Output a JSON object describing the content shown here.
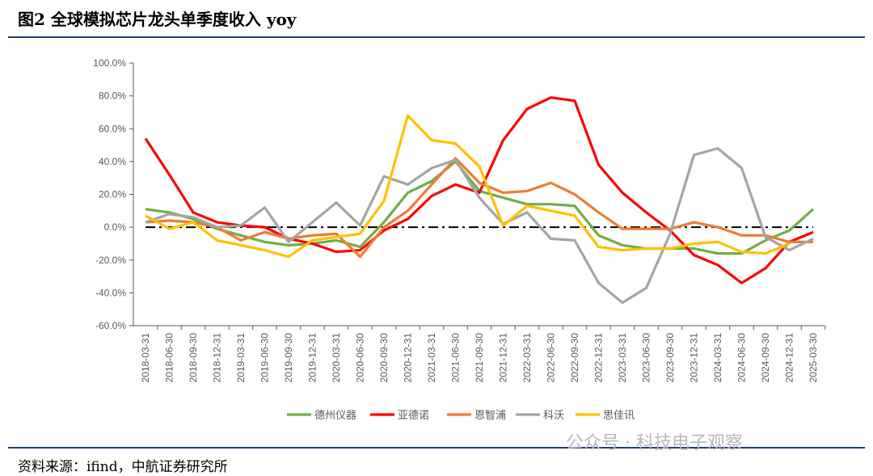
{
  "header": {
    "title": "图2  全球模拟芯片龙头单季度收入 yoy"
  },
  "footer": {
    "source": "资料来源：ifind，中航证券研究所",
    "watermark": "公众号 · 科技电子观察"
  },
  "chart_data": {
    "type": "line",
    "title": "",
    "xlabel": "",
    "ylabel": "",
    "ylim": [
      -60,
      100
    ],
    "yticks": [
      "100.0%",
      "80.0%",
      "60.0%",
      "40.0%",
      "20.0%",
      "0.0%",
      "-20.0%",
      "-40.0%",
      "-60.0%"
    ],
    "ytick_values": [
      100,
      80,
      60,
      40,
      20,
      0,
      -20,
      -40,
      -60
    ],
    "grid": false,
    "legend": "bottom",
    "reference_line": {
      "y": 0,
      "style": "dash-dot",
      "color": "#000000"
    },
    "categories": [
      "2018-03-31",
      "2018-06-30",
      "2018-09-30",
      "2018-12-31",
      "2019-03-31",
      "2019-06-30",
      "2019-09-30",
      "2019-12-31",
      "2020-03-31",
      "2020-06-30",
      "2020-09-30",
      "2020-12-31",
      "2021-03-31",
      "2021-06-30",
      "2021-09-30",
      "2021-12-31",
      "2022-03-31",
      "2022-06-30",
      "2022-09-30",
      "2022-12-31",
      "2023-03-31",
      "2023-06-30",
      "2023-09-30",
      "2023-12-31",
      "2024-03-31",
      "2024-06-30",
      "2024-09-30",
      "2024-12-31",
      "2025-03-30"
    ],
    "series": [
      {
        "name": "德州仪器",
        "color": "#70ad47",
        "values": [
          11,
          9,
          5,
          -1,
          -5,
          -9,
          -11,
          -10,
          -8,
          -12,
          3,
          21,
          28,
          40,
          22,
          18,
          14,
          14,
          13,
          -5,
          -11,
          -13,
          -13,
          -13,
          -16,
          -16,
          -8,
          -2,
          11
        ]
      },
      {
        "name": "亚德诺",
        "color": "#ff0000",
        "values": [
          54,
          32,
          9,
          3,
          1,
          0,
          -7,
          -10,
          -15,
          -14,
          -2,
          5,
          19,
          26,
          21,
          53,
          72,
          79,
          77,
          38,
          21,
          9,
          -2,
          -17,
          -23,
          -34,
          -25,
          -9,
          -3
        ]
      },
      {
        "name": "恩智浦",
        "color": "#ed7d31",
        "values": [
          3,
          4,
          3,
          0,
          -8,
          -3,
          -7,
          -5,
          -4,
          -18,
          0,
          10,
          26,
          42,
          27,
          21,
          22,
          27,
          20,
          9,
          -1,
          -1,
          -1,
          3,
          0,
          -5,
          -5,
          -9,
          -9
        ]
      },
      {
        "name": "科沃",
        "color": "#a5a5a5",
        "values": [
          3,
          8,
          6,
          0,
          1,
          12,
          -9,
          3,
          15,
          1,
          31,
          26,
          36,
          41,
          18,
          2,
          9,
          -7,
          -8,
          -34,
          -46,
          -37,
          -4,
          44,
          48,
          36,
          -6,
          -14,
          -7
        ]
      },
      {
        "name": "思佳讯",
        "color": "#ffc000",
        "values": [
          7,
          -1,
          3,
          -8,
          -11,
          -14,
          -18,
          -8,
          -6,
          -4,
          16,
          68,
          53,
          51,
          37,
          1,
          13,
          10,
          7,
          -12,
          -14,
          -13,
          -13,
          -10,
          -9,
          -15,
          -16,
          -10,
          null
        ]
      }
    ]
  }
}
